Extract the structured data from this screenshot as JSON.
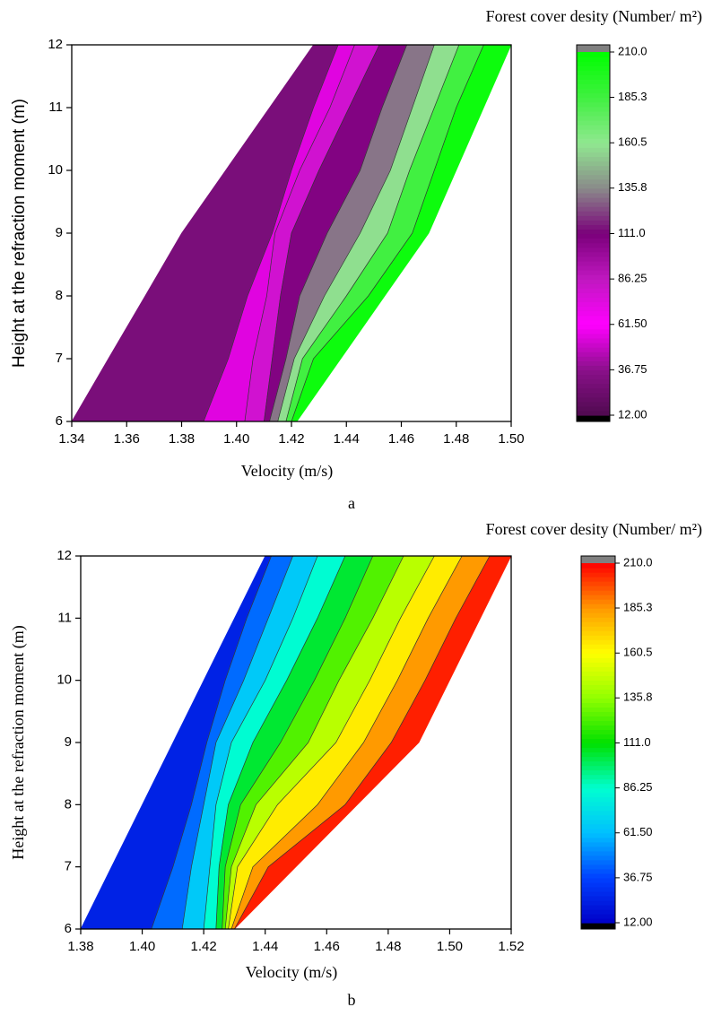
{
  "chart_data": [
    {
      "type": "contour",
      "panel_label": "a",
      "title": "Forest cover desity (Number/ m²)",
      "x_label": "Velocity (m/s)",
      "y_label": "Height at the refraction moment (m)",
      "xlim": [
        1.34,
        1.5
      ],
      "xticks": [
        1.34,
        1.36,
        1.38,
        {
          "value": 1.4,
          "label": "1.40"
        },
        1.42,
        1.44,
        1.46,
        1.48,
        {
          "value": 1.5,
          "label": "1.50"
        }
      ],
      "ylim": [
        6,
        12
      ],
      "yticks": [
        6,
        7,
        8,
        9,
        10,
        11,
        12
      ],
      "zlim": [
        12,
        210
      ],
      "zticks": [
        {
          "value": 12,
          "label": "12.00"
        },
        36.75,
        {
          "value": 61.5,
          "label": "61.50"
        },
        86.25,
        {
          "value": 111,
          "label": "111.0"
        },
        135.8,
        160.5,
        185.3,
        {
          "value": 210,
          "label": "210.0"
        }
      ],
      "colormap": [
        "#4f0a4f",
        "#8a108a",
        "#ff00ff",
        "#c018c0",
        "#7a007a",
        "#8a8a8a",
        "#90e890",
        "#40f040",
        "#00ff00"
      ],
      "over_color": "#808080",
      "under_color": "#000000",
      "y_levels": [
        6,
        7,
        8,
        9,
        10,
        11,
        12
      ],
      "region_left": [
        1.34,
        1.3533,
        1.3667,
        1.38,
        1.396,
        1.412,
        1.428
      ],
      "region_right": [
        1.422,
        1.438,
        1.454,
        1.47,
        1.48,
        1.49,
        1.5
      ],
      "contours": [
        [
          1.388,
          1.397,
          1.404,
          1.413,
          1.42,
          1.428,
          1.437
        ],
        [
          1.403,
          1.406,
          1.411,
          1.414,
          1.423,
          1.434,
          1.443
        ],
        [
          1.41,
          1.413,
          1.416,
          1.42,
          1.43,
          1.441,
          1.452
        ],
        [
          1.412,
          1.418,
          1.423,
          1.433,
          1.445,
          1.453,
          1.462
        ],
        [
          1.415,
          1.421,
          1.432,
          1.445,
          1.456,
          1.464,
          1.472
        ],
        [
          1.418,
          1.424,
          1.44,
          1.455,
          1.463,
          1.472,
          1.481
        ],
        [
          1.42,
          1.428,
          1.448,
          1.464,
          1.472,
          1.48,
          1.49
        ]
      ],
      "band_levels": [
        30,
        55,
        80,
        108,
        132,
        158,
        185,
        205
      ]
    },
    {
      "type": "contour",
      "panel_label": "b",
      "title": "Forest cover desity (Number/ m²)",
      "x_label": "Velocity (m/s)",
      "y_label": "Height at the refraction moment (m)",
      "xlim": [
        1.38,
        1.52
      ],
      "xticks": [
        1.38,
        {
          "value": 1.4,
          "label": "1.40"
        },
        1.42,
        1.44,
        1.46,
        1.48,
        {
          "value": 1.5,
          "label": "1.50"
        },
        1.52
      ],
      "ylim": [
        6,
        12
      ],
      "yticks": [
        6,
        7,
        8,
        9,
        10,
        11,
        12
      ],
      "zlim": [
        12,
        210
      ],
      "zticks": [
        {
          "value": 12,
          "label": "12.00"
        },
        36.75,
        {
          "value": 61.5,
          "label": "61.50"
        },
        86.25,
        {
          "value": 111,
          "label": "111.0"
        },
        135.8,
        160.5,
        185.3,
        {
          "value": 210,
          "label": "210.0"
        }
      ],
      "colormap": [
        "#0000c8",
        "#0040ff",
        "#00c0ff",
        "#00ffd0",
        "#00e000",
        "#90ff00",
        "#ffff00",
        "#ff9900",
        "#ff0000"
      ],
      "over_color": "#808080",
      "under_color": "#000000",
      "y_levels": [
        6,
        7,
        8,
        9,
        10,
        11,
        12
      ],
      "region_left": [
        1.38,
        1.39,
        1.4,
        1.41,
        1.42,
        1.43,
        1.44
      ],
      "region_right": [
        1.43,
        1.45,
        1.47,
        1.49,
        1.5,
        1.51,
        1.52
      ],
      "contours": [
        [
          1.403,
          1.41,
          1.416,
          1.421,
          1.427,
          1.434,
          1.442
        ],
        [
          1.413,
          1.416,
          1.42,
          1.424,
          1.433,
          1.441,
          1.449
        ],
        [
          1.42,
          1.422,
          1.424,
          1.429,
          1.44,
          1.449,
          1.457
        ],
        [
          1.424,
          1.425,
          1.428,
          1.436,
          1.447,
          1.457,
          1.466
        ],
        [
          1.426,
          1.427,
          1.432,
          1.445,
          1.456,
          1.466,
          1.475
        ],
        [
          1.427,
          1.429,
          1.437,
          1.454,
          1.464,
          1.475,
          1.485
        ],
        [
          1.428,
          1.431,
          1.444,
          1.463,
          1.474,
          1.484,
          1.495
        ],
        [
          1.429,
          1.436,
          1.457,
          1.472,
          1.483,
          1.493,
          1.504
        ],
        [
          1.43,
          1.441,
          1.466,
          1.481,
          1.492,
          1.502,
          1.513
        ]
      ],
      "band_levels": [
        25,
        45,
        65,
        85,
        105,
        125,
        145,
        165,
        185,
        205
      ]
    }
  ]
}
